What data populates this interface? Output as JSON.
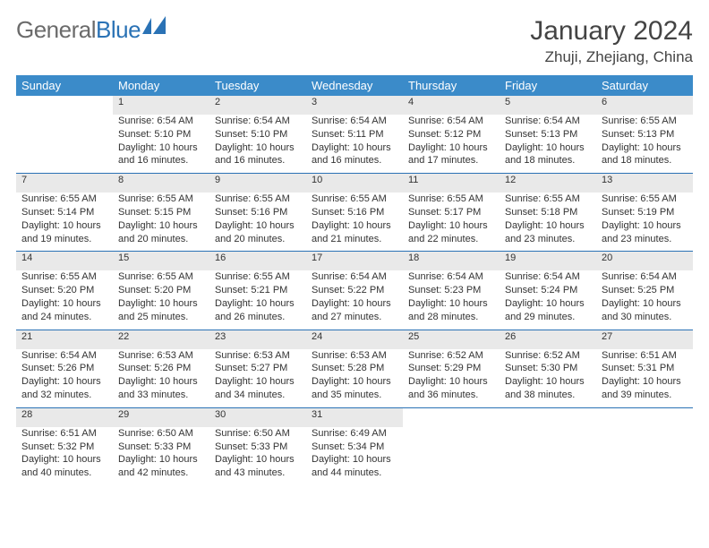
{
  "brand": {
    "first": "General",
    "second": "Blue"
  },
  "title": "January 2024",
  "location": "Zhuji, Zhejiang, China",
  "colors": {
    "header_bg": "#3b8bc9",
    "header_text": "#ffffff",
    "daynum_bg": "#e9e9e9",
    "row_border": "#2a72b5",
    "body_text": "#333333",
    "title_text": "#444444",
    "brand_grey": "#6b6b6b",
    "brand_blue": "#2a72b5"
  },
  "dayHeaders": [
    "Sunday",
    "Monday",
    "Tuesday",
    "Wednesday",
    "Thursday",
    "Friday",
    "Saturday"
  ],
  "weeks": [
    {
      "nums": [
        "",
        "1",
        "2",
        "3",
        "4",
        "5",
        "6"
      ],
      "cells": [
        {
          "sunrise": "",
          "sunset": "",
          "daylight1": "",
          "daylight2": ""
        },
        {
          "sunrise": "Sunrise: 6:54 AM",
          "sunset": "Sunset: 5:10 PM",
          "daylight1": "Daylight: 10 hours",
          "daylight2": "and 16 minutes."
        },
        {
          "sunrise": "Sunrise: 6:54 AM",
          "sunset": "Sunset: 5:10 PM",
          "daylight1": "Daylight: 10 hours",
          "daylight2": "and 16 minutes."
        },
        {
          "sunrise": "Sunrise: 6:54 AM",
          "sunset": "Sunset: 5:11 PM",
          "daylight1": "Daylight: 10 hours",
          "daylight2": "and 16 minutes."
        },
        {
          "sunrise": "Sunrise: 6:54 AM",
          "sunset": "Sunset: 5:12 PM",
          "daylight1": "Daylight: 10 hours",
          "daylight2": "and 17 minutes."
        },
        {
          "sunrise": "Sunrise: 6:54 AM",
          "sunset": "Sunset: 5:13 PM",
          "daylight1": "Daylight: 10 hours",
          "daylight2": "and 18 minutes."
        },
        {
          "sunrise": "Sunrise: 6:55 AM",
          "sunset": "Sunset: 5:13 PM",
          "daylight1": "Daylight: 10 hours",
          "daylight2": "and 18 minutes."
        }
      ]
    },
    {
      "nums": [
        "7",
        "8",
        "9",
        "10",
        "11",
        "12",
        "13"
      ],
      "cells": [
        {
          "sunrise": "Sunrise: 6:55 AM",
          "sunset": "Sunset: 5:14 PM",
          "daylight1": "Daylight: 10 hours",
          "daylight2": "and 19 minutes."
        },
        {
          "sunrise": "Sunrise: 6:55 AM",
          "sunset": "Sunset: 5:15 PM",
          "daylight1": "Daylight: 10 hours",
          "daylight2": "and 20 minutes."
        },
        {
          "sunrise": "Sunrise: 6:55 AM",
          "sunset": "Sunset: 5:16 PM",
          "daylight1": "Daylight: 10 hours",
          "daylight2": "and 20 minutes."
        },
        {
          "sunrise": "Sunrise: 6:55 AM",
          "sunset": "Sunset: 5:16 PM",
          "daylight1": "Daylight: 10 hours",
          "daylight2": "and 21 minutes."
        },
        {
          "sunrise": "Sunrise: 6:55 AM",
          "sunset": "Sunset: 5:17 PM",
          "daylight1": "Daylight: 10 hours",
          "daylight2": "and 22 minutes."
        },
        {
          "sunrise": "Sunrise: 6:55 AM",
          "sunset": "Sunset: 5:18 PM",
          "daylight1": "Daylight: 10 hours",
          "daylight2": "and 23 minutes."
        },
        {
          "sunrise": "Sunrise: 6:55 AM",
          "sunset": "Sunset: 5:19 PM",
          "daylight1": "Daylight: 10 hours",
          "daylight2": "and 23 minutes."
        }
      ]
    },
    {
      "nums": [
        "14",
        "15",
        "16",
        "17",
        "18",
        "19",
        "20"
      ],
      "cells": [
        {
          "sunrise": "Sunrise: 6:55 AM",
          "sunset": "Sunset: 5:20 PM",
          "daylight1": "Daylight: 10 hours",
          "daylight2": "and 24 minutes."
        },
        {
          "sunrise": "Sunrise: 6:55 AM",
          "sunset": "Sunset: 5:20 PM",
          "daylight1": "Daylight: 10 hours",
          "daylight2": "and 25 minutes."
        },
        {
          "sunrise": "Sunrise: 6:55 AM",
          "sunset": "Sunset: 5:21 PM",
          "daylight1": "Daylight: 10 hours",
          "daylight2": "and 26 minutes."
        },
        {
          "sunrise": "Sunrise: 6:54 AM",
          "sunset": "Sunset: 5:22 PM",
          "daylight1": "Daylight: 10 hours",
          "daylight2": "and 27 minutes."
        },
        {
          "sunrise": "Sunrise: 6:54 AM",
          "sunset": "Sunset: 5:23 PM",
          "daylight1": "Daylight: 10 hours",
          "daylight2": "and 28 minutes."
        },
        {
          "sunrise": "Sunrise: 6:54 AM",
          "sunset": "Sunset: 5:24 PM",
          "daylight1": "Daylight: 10 hours",
          "daylight2": "and 29 minutes."
        },
        {
          "sunrise": "Sunrise: 6:54 AM",
          "sunset": "Sunset: 5:25 PM",
          "daylight1": "Daylight: 10 hours",
          "daylight2": "and 30 minutes."
        }
      ]
    },
    {
      "nums": [
        "21",
        "22",
        "23",
        "24",
        "25",
        "26",
        "27"
      ],
      "cells": [
        {
          "sunrise": "Sunrise: 6:54 AM",
          "sunset": "Sunset: 5:26 PM",
          "daylight1": "Daylight: 10 hours",
          "daylight2": "and 32 minutes."
        },
        {
          "sunrise": "Sunrise: 6:53 AM",
          "sunset": "Sunset: 5:26 PM",
          "daylight1": "Daylight: 10 hours",
          "daylight2": "and 33 minutes."
        },
        {
          "sunrise": "Sunrise: 6:53 AM",
          "sunset": "Sunset: 5:27 PM",
          "daylight1": "Daylight: 10 hours",
          "daylight2": "and 34 minutes."
        },
        {
          "sunrise": "Sunrise: 6:53 AM",
          "sunset": "Sunset: 5:28 PM",
          "daylight1": "Daylight: 10 hours",
          "daylight2": "and 35 minutes."
        },
        {
          "sunrise": "Sunrise: 6:52 AM",
          "sunset": "Sunset: 5:29 PM",
          "daylight1": "Daylight: 10 hours",
          "daylight2": "and 36 minutes."
        },
        {
          "sunrise": "Sunrise: 6:52 AM",
          "sunset": "Sunset: 5:30 PM",
          "daylight1": "Daylight: 10 hours",
          "daylight2": "and 38 minutes."
        },
        {
          "sunrise": "Sunrise: 6:51 AM",
          "sunset": "Sunset: 5:31 PM",
          "daylight1": "Daylight: 10 hours",
          "daylight2": "and 39 minutes."
        }
      ]
    },
    {
      "nums": [
        "28",
        "29",
        "30",
        "31",
        "",
        "",
        ""
      ],
      "cells": [
        {
          "sunrise": "Sunrise: 6:51 AM",
          "sunset": "Sunset: 5:32 PM",
          "daylight1": "Daylight: 10 hours",
          "daylight2": "and 40 minutes."
        },
        {
          "sunrise": "Sunrise: 6:50 AM",
          "sunset": "Sunset: 5:33 PM",
          "daylight1": "Daylight: 10 hours",
          "daylight2": "and 42 minutes."
        },
        {
          "sunrise": "Sunrise: 6:50 AM",
          "sunset": "Sunset: 5:33 PM",
          "daylight1": "Daylight: 10 hours",
          "daylight2": "and 43 minutes."
        },
        {
          "sunrise": "Sunrise: 6:49 AM",
          "sunset": "Sunset: 5:34 PM",
          "daylight1": "Daylight: 10 hours",
          "daylight2": "and 44 minutes."
        },
        {
          "sunrise": "",
          "sunset": "",
          "daylight1": "",
          "daylight2": ""
        },
        {
          "sunrise": "",
          "sunset": "",
          "daylight1": "",
          "daylight2": ""
        },
        {
          "sunrise": "",
          "sunset": "",
          "daylight1": "",
          "daylight2": ""
        }
      ]
    }
  ]
}
